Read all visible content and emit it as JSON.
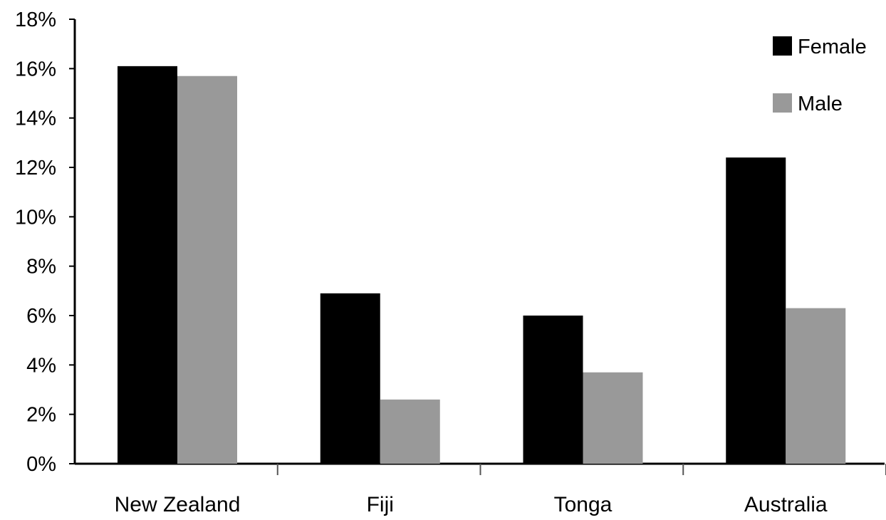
{
  "chart_data": {
    "type": "bar",
    "title": "",
    "xlabel": "",
    "ylabel": "",
    "categories": [
      "New Zealand",
      "Fiji",
      "Tonga",
      "Australia"
    ],
    "series": [
      {
        "name": "Female",
        "values": [
          16.1,
          6.9,
          6.0,
          12.4
        ],
        "color": "#000000"
      },
      {
        "name": "Male",
        "values": [
          15.7,
          2.6,
          3.7,
          6.3
        ],
        "color": "#999999"
      }
    ],
    "ylim": [
      0,
      18
    ],
    "yticks": [
      0,
      2,
      4,
      6,
      8,
      10,
      12,
      14,
      16,
      18
    ],
    "ytick_labels": [
      "0%",
      "2%",
      "4%",
      "6%",
      "8%",
      "10%",
      "12%",
      "14%",
      "16%",
      "18%"
    ],
    "grid": false,
    "legend_position": "top-right"
  }
}
